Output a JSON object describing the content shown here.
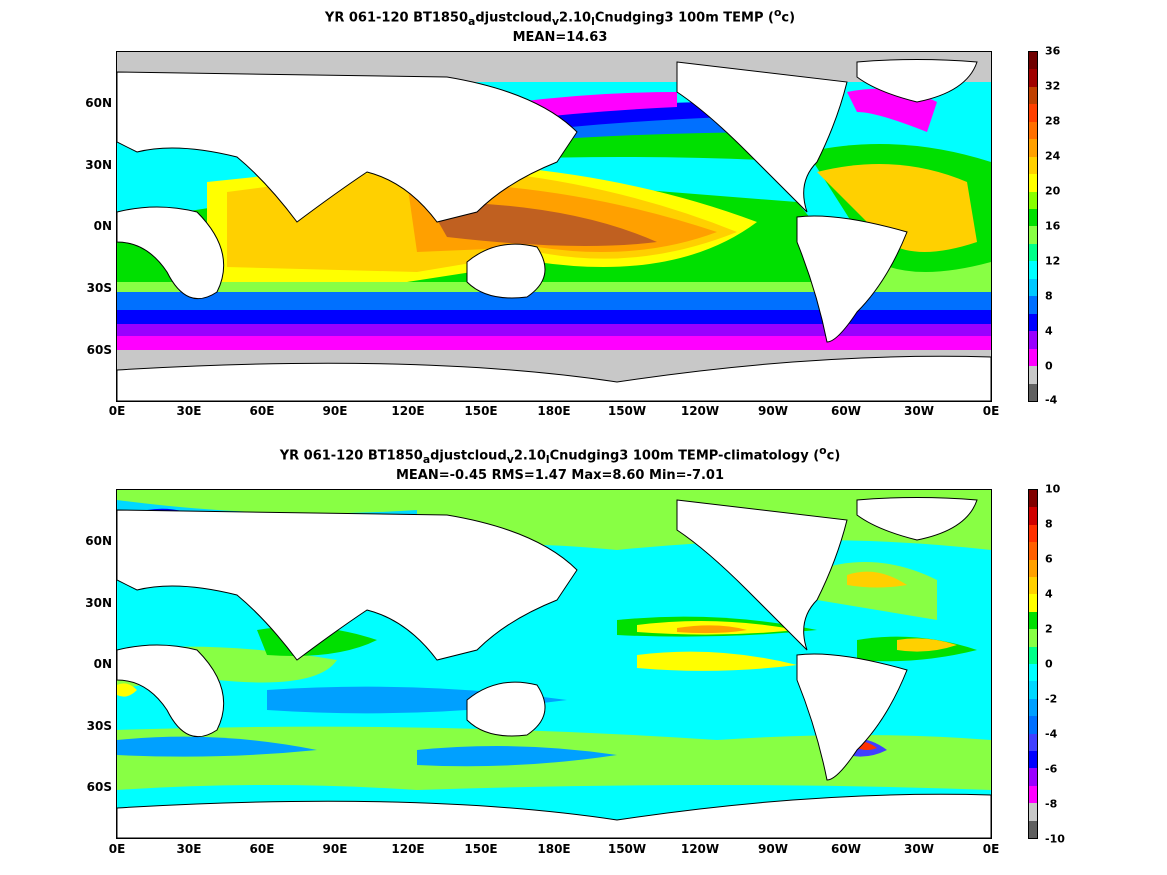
{
  "top": {
    "title_line1_parts": [
      "YR 061-120 BT1850",
      "a",
      "djustcloud",
      "v",
      "2.10",
      "l",
      "Cnudging3 100m TEMP (",
      "o",
      "c)"
    ],
    "title_line2": "MEAN=14.63",
    "colorbar_labels": [
      "-4",
      "0",
      "4",
      "8",
      "12",
      "16",
      "20",
      "24",
      "28",
      "32",
      "36"
    ],
    "colorbar_colors": [
      "#606060",
      "#c8c8c8",
      "#ff00ff",
      "#9a00ff",
      "#0000ff",
      "#0070ff",
      "#00c8ff",
      "#00ffff",
      "#00ff88",
      "#88ff44",
      "#00e000",
      "#88ff00",
      "#ffff00",
      "#ffd000",
      "#ffa000",
      "#ff7000",
      "#ff4000",
      "#c04000",
      "#a00000",
      "#700000"
    ]
  },
  "bottom": {
    "title_line1_parts": [
      "YR 061-120 BT1850",
      "a",
      "djustcloud",
      "v",
      "2.10",
      "l",
      "Cnudging3 100m TEMP-climatology (",
      "o",
      "c)"
    ],
    "title_line2": "MEAN=-0.45   RMS=1.47   Max=8.60   Min=-7.01",
    "colorbar_labels": [
      "-10",
      "-8",
      "-6",
      "-4",
      "-2",
      "0",
      "2",
      "4",
      "6",
      "8",
      "10"
    ],
    "colorbar_colors": [
      "#606060",
      "#c8c8c8",
      "#ff00ff",
      "#9a00ff",
      "#0000ff",
      "#4040ff",
      "#0070ff",
      "#00a0ff",
      "#00d8ff",
      "#00ffff",
      "#00ff88",
      "#88ff44",
      "#00e000",
      "#ffff00",
      "#ffd000",
      "#ffa000",
      "#ff6000",
      "#ff3000",
      "#d00000",
      "#800000"
    ]
  },
  "xticks": [
    "0E",
    "30E",
    "60E",
    "90E",
    "120E",
    "150E",
    "180E",
    "150W",
    "120W",
    "90W",
    "60W",
    "30W",
    "0E"
  ],
  "yticks": [
    "60N",
    "30N",
    "0N",
    "30S",
    "60S"
  ]
}
